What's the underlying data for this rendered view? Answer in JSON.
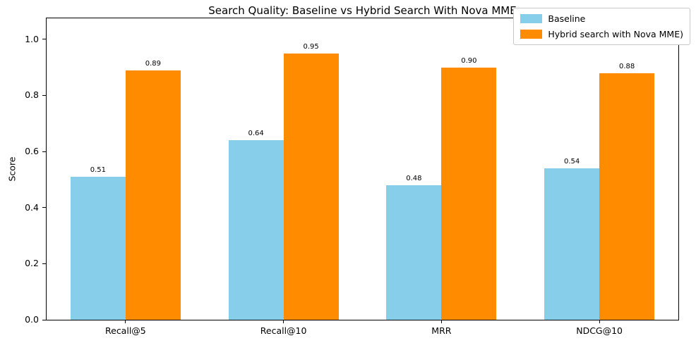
{
  "chart_data": {
    "type": "bar",
    "title": "Search Quality: Baseline vs Hybrid Search With Nova MME",
    "xlabel": "",
    "ylabel": "Score",
    "categories": [
      "Recall@5",
      "Recall@10",
      "MRR",
      "NDCG@10"
    ],
    "series": [
      {
        "name": "Baseline",
        "color": "#87ceeb",
        "values": [
          0.51,
          0.64,
          0.48,
          0.54
        ]
      },
      {
        "name": "Hybrid search with Nova MME)",
        "color": "#ff8c00",
        "values": [
          0.89,
          0.95,
          0.9,
          0.88
        ]
      }
    ],
    "value_labels": [
      [
        "0.51",
        "0.64",
        "0.48",
        "0.54"
      ],
      [
        "0.89",
        "0.95",
        "0.90",
        "0.88"
      ]
    ],
    "ylim": [
      0,
      1.075
    ],
    "yticks": [
      0.0,
      0.2,
      0.4,
      0.6,
      0.8,
      1.0
    ],
    "ytick_labels": [
      "0.0",
      "0.2",
      "0.4",
      "0.6",
      "0.8",
      "1.0"
    ],
    "grid": false,
    "legend_position": "upper right",
    "colors": {
      "background": "#ffffff",
      "axis": "#000000",
      "text": "#000000"
    }
  }
}
